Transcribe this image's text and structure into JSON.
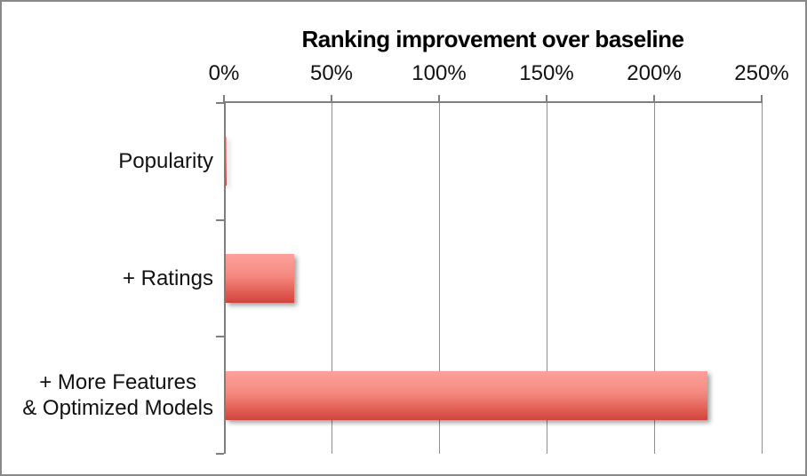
{
  "window": {
    "background": "#ffffff",
    "border_color": "#898989"
  },
  "chart_data": {
    "type": "bar",
    "orientation": "horizontal",
    "title": "Ranking improvement over baseline",
    "categories": [
      "Popularity",
      "+ Ratings",
      "+ More Features\n& Optimized Models"
    ],
    "values": [
      0.5,
      32,
      224
    ],
    "value_unit": "%",
    "x_axis": {
      "position": "top",
      "range": [
        0,
        250
      ],
      "tick_labels": [
        "0%",
        "50%",
        "100%",
        "150%",
        "200%",
        "250%"
      ],
      "tick_values": [
        0,
        50,
        100,
        150,
        200,
        250
      ]
    },
    "y_axis": {
      "position": "left"
    },
    "grid": true,
    "legend": false,
    "colors": {
      "bar_top": "#fda19c",
      "bar_bottom": "#d1443c",
      "gridline": "#8f8f8f",
      "axis": "#7f7f7f",
      "text": "#111111"
    }
  }
}
